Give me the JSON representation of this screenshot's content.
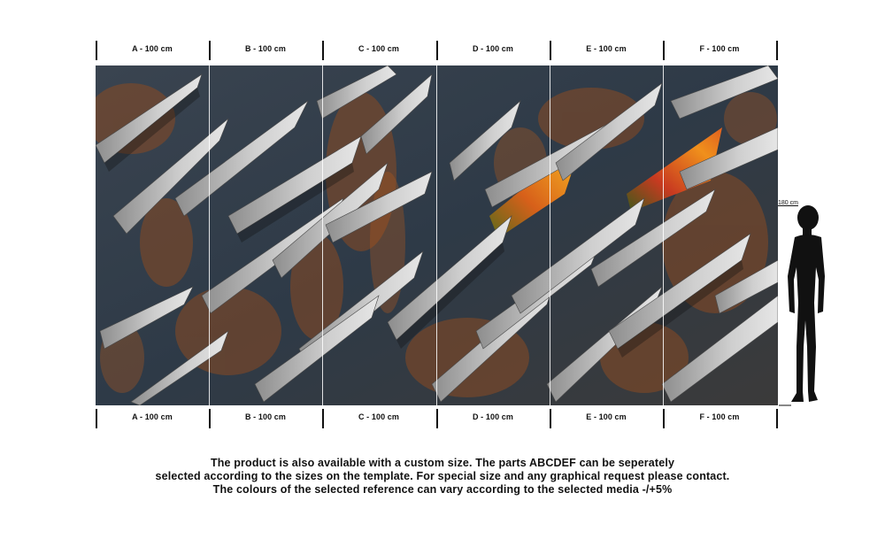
{
  "panels": [
    {
      "letter": "A",
      "label": "A - 100 cm"
    },
    {
      "letter": "B",
      "label": "B - 100 cm"
    },
    {
      "letter": "C",
      "label": "C - 100 cm"
    },
    {
      "letter": "D",
      "label": "D - 100 cm"
    },
    {
      "letter": "E",
      "label": "E - 100 cm"
    },
    {
      "letter": "F",
      "label": "F - 100 cm"
    }
  ],
  "figure": {
    "height_label": "180 cm"
  },
  "footer": {
    "line1": "The product is also available with a custom size. The parts ABCDEF can be seperately",
    "line2": "selected according to the sizes on the template. For special size and any graphical request please contact.",
    "line3": "The colours of the selected reference can vary according to the selected media -/+5%"
  },
  "colors": {
    "rust": "#8a4a22",
    "steel": "#2f3b48",
    "shard": "#c9c9c9",
    "accent_orange": "#e8901c"
  }
}
